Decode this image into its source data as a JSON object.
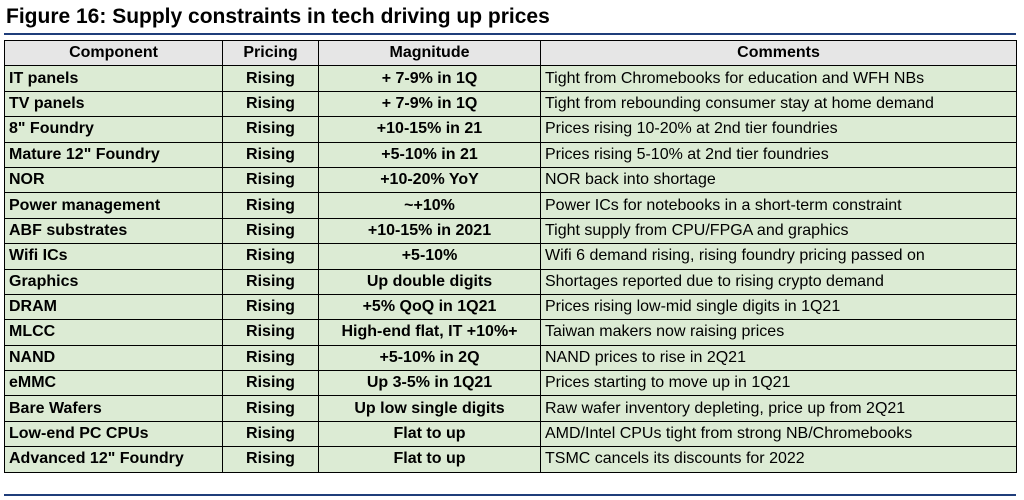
{
  "title": "Figure 16: Supply constraints in tech driving up prices",
  "colors": {
    "header_bg": "#e6e6e6",
    "cell_bg": "#dcebd4",
    "rule": "#1f3d7a"
  },
  "table": {
    "headers": [
      "Component",
      "Pricing",
      "Magnitude",
      "Comments"
    ],
    "rows": [
      {
        "component": "IT panels",
        "pricing": "Rising",
        "magnitude": "+ 7-9% in 1Q",
        "comments": "Tight from Chromebooks for education and WFH NBs"
      },
      {
        "component": "TV panels",
        "pricing": "Rising",
        "magnitude": "+ 7-9% in 1Q",
        "comments": "Tight from rebounding consumer stay at home demand"
      },
      {
        "component": "8\" Foundry",
        "pricing": "Rising",
        "magnitude": "+10-15% in 21",
        "comments": "Prices rising 10-20% at 2nd tier foundries"
      },
      {
        "component": "Mature 12\" Foundry",
        "pricing": "Rising",
        "magnitude": "+5-10% in 21",
        "comments": "Prices rising 5-10% at 2nd tier foundries"
      },
      {
        "component": "NOR",
        "pricing": "Rising",
        "magnitude": "+10-20% YoY",
        "comments": "NOR back into shortage"
      },
      {
        "component": "Power management",
        "pricing": "Rising",
        "magnitude": "~+10%",
        "comments": "Power ICs for notebooks in a short-term constraint"
      },
      {
        "component": "ABF substrates",
        "pricing": "Rising",
        "magnitude": "+10-15% in 2021",
        "comments": "Tight supply from CPU/FPGA and graphics"
      },
      {
        "component": "Wifi ICs",
        "pricing": "Rising",
        "magnitude": "+5-10%",
        "comments": "Wifi 6 demand rising, rising foundry pricing passed on"
      },
      {
        "component": "Graphics",
        "pricing": "Rising",
        "magnitude": "Up double digits",
        "comments": "Shortages reported due to rising crypto demand"
      },
      {
        "component": "DRAM",
        "pricing": "Rising",
        "magnitude": "+5% QoQ in 1Q21",
        "comments": "Prices rising low-mid single digits in 1Q21"
      },
      {
        "component": "MLCC",
        "pricing": "Rising",
        "magnitude": "High-end flat, IT +10%+",
        "comments": "Taiwan makers now raising prices"
      },
      {
        "component": "NAND",
        "pricing": "Rising",
        "magnitude": "+5-10% in 2Q",
        "comments": "NAND prices to rise in 2Q21"
      },
      {
        "component": "eMMC",
        "pricing": "Rising",
        "magnitude": "Up 3-5% in 1Q21",
        "comments": "Prices starting to move up in 1Q21"
      },
      {
        "component": "Bare Wafers",
        "pricing": "Rising",
        "magnitude": "Up low single digits",
        "comments": "Raw wafer inventory depleting, price up from 2Q21"
      },
      {
        "component": "Low-end PC CPUs",
        "pricing": "Rising",
        "magnitude": "Flat to up",
        "comments": "AMD/Intel CPUs tight from strong NB/Chromebooks"
      },
      {
        "component": "Advanced 12\" Foundry",
        "pricing": "Rising",
        "magnitude": "Flat to up",
        "comments": "TSMC cancels its discounts for 2022"
      }
    ]
  }
}
